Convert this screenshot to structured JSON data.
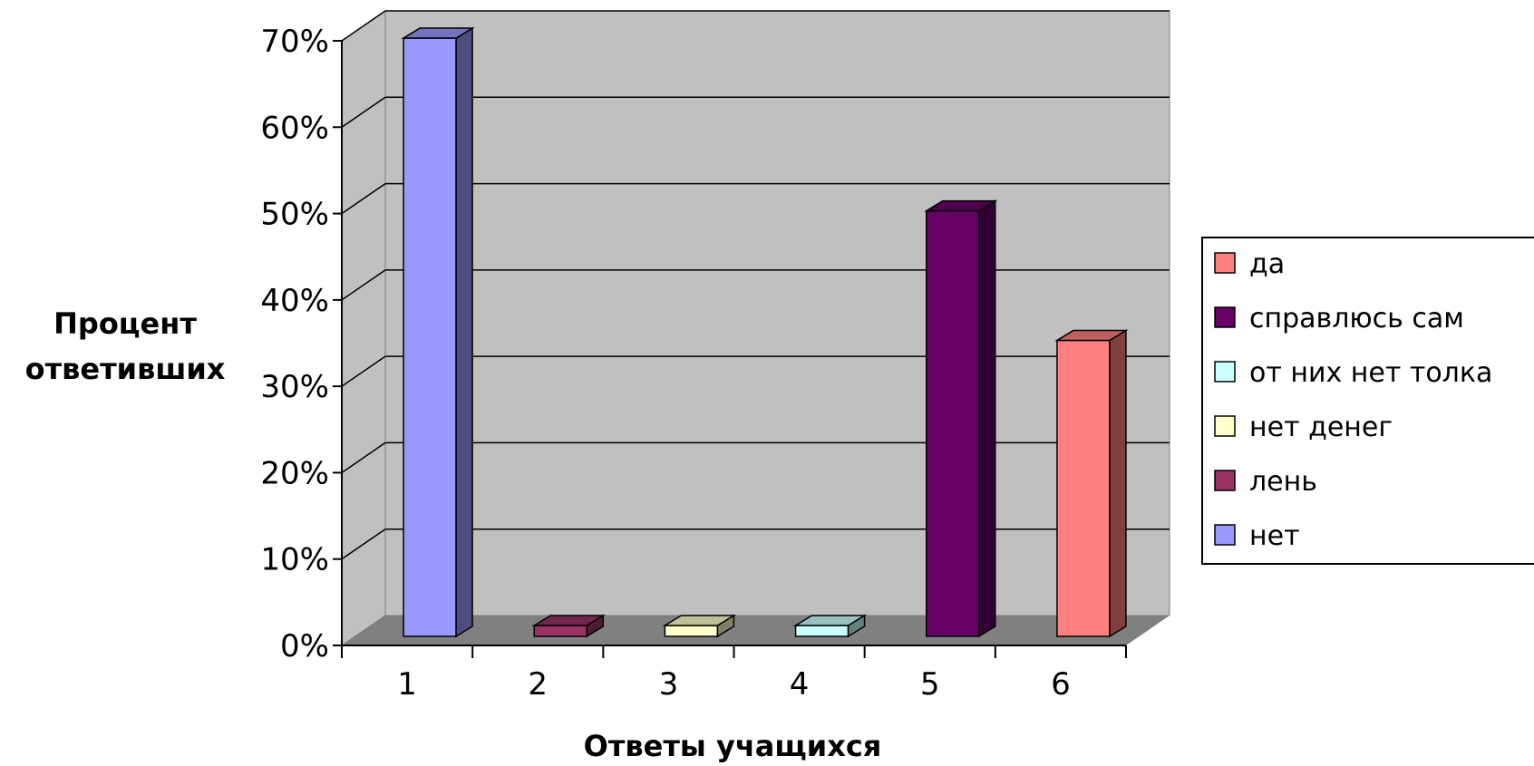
{
  "chart_data": {
    "type": "bar",
    "xlabel": "Ответы учащихся",
    "ylabel_lines": [
      "Процент",
      "ответивших"
    ],
    "ylim": [
      0,
      70
    ],
    "yticks": [
      "0%",
      "10%",
      "20%",
      "30%",
      "40%",
      "50%",
      "60%",
      "70%"
    ],
    "categories": [
      "1",
      "2",
      "3",
      "4",
      "5",
      "6"
    ],
    "values": [
      68,
      0,
      0,
      0,
      48,
      33
    ],
    "bar_colors": [
      "#9999FF",
      "#993366",
      "#FFFFCC",
      "#CCFFFF",
      "#660066",
      "#FF8080"
    ],
    "legend": [
      {
        "label": "да",
        "color": "#FF8080"
      },
      {
        "label": "справлюсь сам",
        "color": "#660066"
      },
      {
        "label": "от них нет толка",
        "color": "#CCFFFF"
      },
      {
        "label": "нет денег",
        "color": "#FFFFCC"
      },
      {
        "label": "лень",
        "color": "#993366"
      },
      {
        "label": "нет",
        "color": "#9999FF"
      }
    ],
    "legend_position": "right",
    "grid": true,
    "wall_color": "#C0C0C0",
    "floor_color": "#808080"
  }
}
